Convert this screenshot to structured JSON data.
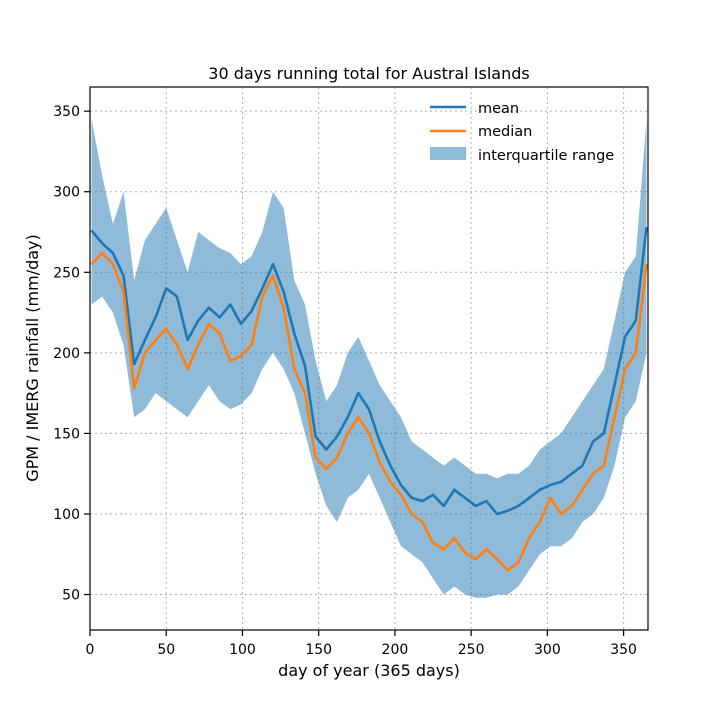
{
  "chart_data": {
    "type": "line",
    "title": "30 days running total for Austral Islands",
    "xlabel": "day of year (365 days)",
    "ylabel": "GPM / IMERG rainfall (mm/day)",
    "xlim": [
      0,
      366
    ],
    "ylim": [
      28,
      365
    ],
    "xticks": [
      0,
      50,
      100,
      150,
      200,
      250,
      300,
      350
    ],
    "yticks": [
      50,
      100,
      150,
      200,
      250,
      300,
      350
    ],
    "grid": true,
    "legend_position": "top-right",
    "x": [
      1,
      8,
      15,
      22,
      29,
      36,
      43,
      50,
      57,
      64,
      71,
      78,
      85,
      92,
      99,
      106,
      113,
      120,
      127,
      134,
      141,
      148,
      155,
      162,
      169,
      176,
      183,
      190,
      197,
      204,
      211,
      218,
      225,
      232,
      239,
      246,
      253,
      260,
      267,
      274,
      281,
      288,
      295,
      302,
      309,
      316,
      323,
      330,
      337,
      344,
      351,
      358,
      365
    ],
    "series": [
      {
        "name": "mean",
        "color": "#1f77b4",
        "values": [
          276,
          268,
          262,
          248,
          193,
          208,
          222,
          240,
          235,
          208,
          220,
          228,
          222,
          230,
          218,
          226,
          240,
          255,
          238,
          212,
          192,
          148,
          140,
          148,
          160,
          175,
          165,
          145,
          130,
          118,
          110,
          108,
          112,
          105,
          115,
          110,
          105,
          108,
          100,
          102,
          105,
          110,
          115,
          118,
          120,
          125,
          130,
          145,
          150,
          180,
          210,
          220,
          278
        ]
      },
      {
        "name": "median",
        "color": "#ff7f0e",
        "values": [
          255,
          262,
          255,
          238,
          178,
          200,
          208,
          215,
          205,
          190,
          205,
          218,
          212,
          195,
          198,
          205,
          235,
          248,
          228,
          190,
          175,
          135,
          128,
          135,
          150,
          160,
          150,
          132,
          120,
          112,
          100,
          95,
          82,
          78,
          85,
          76,
          72,
          78,
          72,
          65,
          70,
          85,
          95,
          110,
          100,
          105,
          115,
          125,
          130,
          160,
          190,
          200,
          255
        ]
      }
    ],
    "interquartile_range": {
      "name": "interquartile range",
      "color": "#1f77b4",
      "opacity": 0.5,
      "lower": [
        230,
        235,
        225,
        205,
        160,
        165,
        175,
        170,
        165,
        160,
        170,
        180,
        170,
        165,
        168,
        175,
        190,
        200,
        190,
        175,
        150,
        125,
        105,
        95,
        110,
        115,
        125,
        110,
        95,
        80,
        75,
        70,
        60,
        50,
        55,
        50,
        48,
        48,
        50,
        50,
        55,
        65,
        75,
        80,
        80,
        85,
        95,
        100,
        110,
        130,
        160,
        170,
        200
      ],
      "upper": [
        345,
        310,
        280,
        300,
        245,
        270,
        280,
        290,
        270,
        250,
        275,
        270,
        265,
        262,
        255,
        260,
        275,
        300,
        290,
        245,
        230,
        195,
        170,
        180,
        200,
        210,
        195,
        180,
        170,
        160,
        145,
        140,
        135,
        130,
        135,
        130,
        125,
        125,
        122,
        125,
        125,
        130,
        140,
        145,
        150,
        160,
        170,
        180,
        190,
        220,
        250,
        260,
        345
      ]
    }
  }
}
